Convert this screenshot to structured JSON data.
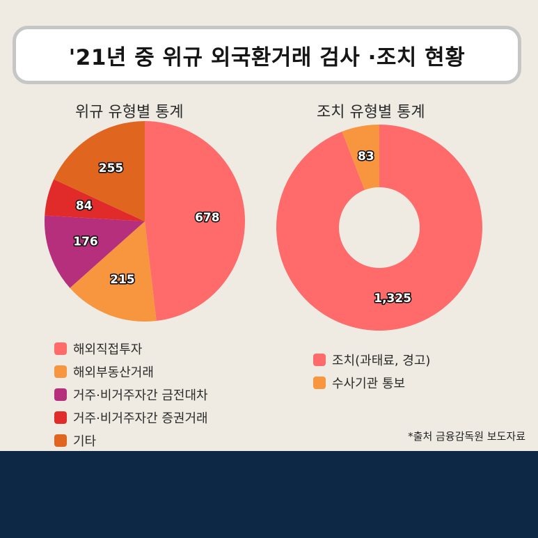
{
  "title": "'21년 중 위규 외국환거래 검사 ·조치 현황",
  "source_note": "*출처 금융감독원 보도자료",
  "colors": {
    "background": "#efebe3",
    "footer": "#0d2845",
    "title_border": "#c6c6c6"
  },
  "chart_data": [
    {
      "type": "pie",
      "title": "위규 유형별 통계",
      "slices": [
        {
          "label": "해외직접투자",
          "value": 678,
          "display": "678",
          "color": "#ff6b6b"
        },
        {
          "label": "해외부동산거래",
          "value": 215,
          "display": "215",
          "color": "#f7963f"
        },
        {
          "label": "거주·비거주자간 금전대차",
          "value": 176,
          "display": "176",
          "color": "#b52f7d"
        },
        {
          "label": "거주·비거주자간 증권거래",
          "value": 84,
          "display": "84",
          "color": "#e12a2a"
        },
        {
          "label": "기타",
          "value": 255,
          "display": "255",
          "color": "#e0651f"
        }
      ]
    },
    {
      "type": "donut",
      "title": "조치 유형별 통계",
      "slices": [
        {
          "label": "조치(과태료, 경고)",
          "value": 1325,
          "display": "1,325",
          "color": "#ff6b6b"
        },
        {
          "label": "수사기관 통보",
          "value": 83,
          "display": "83",
          "color": "#f7963f"
        }
      ]
    }
  ]
}
